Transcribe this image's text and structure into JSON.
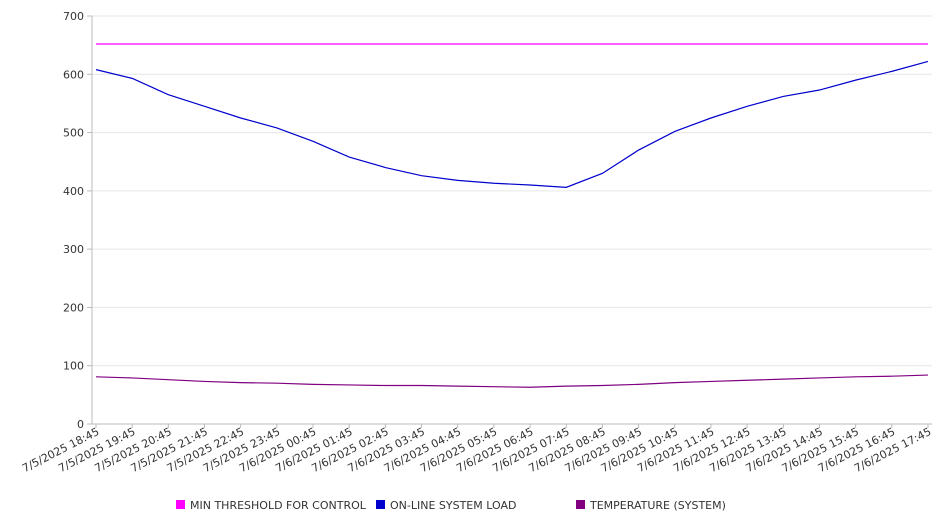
{
  "chart_data": {
    "type": "line",
    "title": "",
    "xlabel": "",
    "ylabel": "",
    "ylim": [
      0,
      700
    ],
    "yticks": [
      0,
      100,
      200,
      300,
      400,
      500,
      600,
      700
    ],
    "grid": true,
    "legend_position": "bottom",
    "x": [
      "7/5/2025 18:45",
      "7/5/2025 19:45",
      "7/5/2025 20:45",
      "7/5/2025 21:45",
      "7/5/2025 22:45",
      "7/5/2025 23:45",
      "7/6/2025 00:45",
      "7/6/2025 01:45",
      "7/6/2025 02:45",
      "7/6/2025 03:45",
      "7/6/2025 04:45",
      "7/6/2025 05:45",
      "7/6/2025 06:45",
      "7/6/2025 07:45",
      "7/6/2025 08:45",
      "7/6/2025 09:45",
      "7/6/2025 10:45",
      "7/6/2025 11:45",
      "7/6/2025 12:45",
      "7/6/2025 13:45",
      "7/6/2025 14:45",
      "7/6/2025 15:45",
      "7/6/2025 16:45",
      "7/6/2025 17:45"
    ],
    "series": [
      {
        "name": "MIN THRESHOLD FOR CONTROL",
        "color": "#ff00ff",
        "values": [
          652,
          652,
          652,
          652,
          652,
          652,
          652,
          652,
          652,
          652,
          652,
          652,
          652,
          652,
          652,
          652,
          652,
          652,
          652,
          652,
          652,
          652,
          652,
          652
        ]
      },
      {
        "name": "ON-LINE SYSTEM LOAD",
        "color": "#0000cc",
        "values": [
          608,
          593,
          565,
          545,
          525,
          508,
          485,
          458,
          440,
          426,
          418,
          413,
          410,
          406,
          430,
          470,
          502,
          525,
          545,
          562,
          573,
          590,
          605,
          622
        ]
      },
      {
        "name": "TEMPERATURE (SYSTEM)",
        "color": "#800080",
        "values": [
          81,
          79,
          76,
          73,
          71,
          70,
          68,
          67,
          66,
          66,
          65,
          64,
          63,
          65,
          66,
          68,
          71,
          73,
          75,
          77,
          79,
          81,
          82,
          84
        ]
      }
    ]
  }
}
